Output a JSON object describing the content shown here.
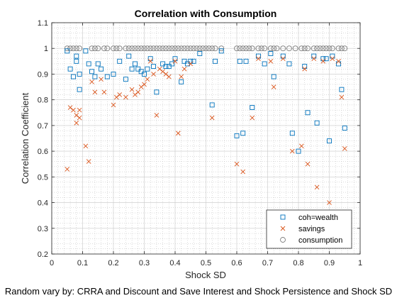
{
  "chart_data": {
    "type": "scatter",
    "title": "Correlation with Consumption",
    "xlabel": "Shock SD",
    "ylabel": "Correlation Coefficient",
    "caption": "Random vary by: CRRA and Discount and Save Interest and Shock Persistence and Shock SD",
    "xlim": [
      0,
      1
    ],
    "ylim": [
      0.2,
      1.1
    ],
    "xticks": [
      "0",
      "0.1",
      "0.2",
      "0.3",
      "0.4",
      "0.5",
      "0.6",
      "0.7",
      "0.8",
      "0.9",
      "1"
    ],
    "yticks": [
      "0.2",
      "0.3",
      "0.4",
      "0.5",
      "0.6",
      "0.7",
      "0.8",
      "0.9",
      "1",
      "1.1"
    ],
    "grid": "minor-dotted",
    "legend_position": "bottom-right",
    "series": [
      {
        "name": "coh=wealth",
        "marker": "square",
        "color": "#0072BD",
        "points": [
          [
            0.05,
            0.99
          ],
          [
            0.06,
            0.92
          ],
          [
            0.07,
            0.89
          ],
          [
            0.08,
            0.97
          ],
          [
            0.08,
            0.95
          ],
          [
            0.09,
            0.84
          ],
          [
            0.09,
            0.9
          ],
          [
            0.11,
            0.99
          ],
          [
            0.12,
            0.94
          ],
          [
            0.13,
            0.91
          ],
          [
            0.14,
            0.89
          ],
          [
            0.15,
            0.94
          ],
          [
            0.16,
            0.92
          ],
          [
            0.18,
            0.89
          ],
          [
            0.2,
            0.9
          ],
          [
            0.22,
            0.95
          ],
          [
            0.24,
            0.88
          ],
          [
            0.25,
            0.97
          ],
          [
            0.26,
            0.92
          ],
          [
            0.27,
            0.94
          ],
          [
            0.28,
            0.92
          ],
          [
            0.29,
            0.91
          ],
          [
            0.3,
            0.9
          ],
          [
            0.31,
            0.92
          ],
          [
            0.32,
            0.96
          ],
          [
            0.33,
            0.93
          ],
          [
            0.34,
            0.83
          ],
          [
            0.36,
            0.94
          ],
          [
            0.37,
            0.93
          ],
          [
            0.38,
            0.93
          ],
          [
            0.39,
            0.94
          ],
          [
            0.4,
            0.96
          ],
          [
            0.42,
            0.87
          ],
          [
            0.43,
            0.95
          ],
          [
            0.44,
            0.94
          ],
          [
            0.45,
            0.95
          ],
          [
            0.46,
            0.95
          ],
          [
            0.48,
            0.98
          ],
          [
            0.52,
            0.78
          ],
          [
            0.53,
            0.95
          ],
          [
            0.55,
            0.99
          ],
          [
            0.6,
            0.66
          ],
          [
            0.61,
            0.95
          ],
          [
            0.62,
            0.67
          ],
          [
            0.63,
            0.95
          ],
          [
            0.65,
            0.77
          ],
          [
            0.67,
            0.97
          ],
          [
            0.69,
            0.94
          ],
          [
            0.71,
            0.98
          ],
          [
            0.72,
            0.89
          ],
          [
            0.75,
            0.97
          ],
          [
            0.77,
            0.94
          ],
          [
            0.78,
            0.67
          ],
          [
            0.8,
            0.6
          ],
          [
            0.82,
            0.93
          ],
          [
            0.83,
            0.75
          ],
          [
            0.85,
            0.97
          ],
          [
            0.86,
            0.71
          ],
          [
            0.88,
            0.96
          ],
          [
            0.89,
            0.96
          ],
          [
            0.9,
            0.64
          ],
          [
            0.91,
            0.97
          ],
          [
            0.93,
            0.94
          ],
          [
            0.94,
            0.84
          ],
          [
            0.95,
            0.69
          ]
        ]
      },
      {
        "name": "savings",
        "marker": "x",
        "color": "#D95319",
        "points": [
          [
            0.05,
            0.53
          ],
          [
            0.06,
            0.77
          ],
          [
            0.07,
            0.76
          ],
          [
            0.08,
            0.74
          ],
          [
            0.08,
            0.71
          ],
          [
            0.09,
            0.73
          ],
          [
            0.09,
            0.76
          ],
          [
            0.11,
            0.62
          ],
          [
            0.12,
            0.56
          ],
          [
            0.13,
            0.87
          ],
          [
            0.14,
            0.83
          ],
          [
            0.16,
            0.88
          ],
          [
            0.17,
            0.83
          ],
          [
            0.2,
            0.78
          ],
          [
            0.21,
            0.81
          ],
          [
            0.22,
            0.82
          ],
          [
            0.24,
            0.81
          ],
          [
            0.26,
            0.84
          ],
          [
            0.27,
            0.82
          ],
          [
            0.28,
            0.83
          ],
          [
            0.29,
            0.85
          ],
          [
            0.3,
            0.86
          ],
          [
            0.31,
            0.88
          ],
          [
            0.32,
            0.95
          ],
          [
            0.33,
            0.9
          ],
          [
            0.34,
            0.74
          ],
          [
            0.35,
            0.92
          ],
          [
            0.36,
            0.91
          ],
          [
            0.37,
            0.9
          ],
          [
            0.38,
            0.89
          ],
          [
            0.4,
            0.95
          ],
          [
            0.41,
            0.67
          ],
          [
            0.42,
            0.89
          ],
          [
            0.43,
            0.92
          ],
          [
            0.45,
            0.94
          ],
          [
            0.52,
            0.73
          ],
          [
            0.6,
            0.55
          ],
          [
            0.62,
            0.52
          ],
          [
            0.65,
            0.73
          ],
          [
            0.67,
            0.96
          ],
          [
            0.71,
            0.95
          ],
          [
            0.72,
            0.85
          ],
          [
            0.75,
            0.96
          ],
          [
            0.78,
            0.6
          ],
          [
            0.81,
            0.62
          ],
          [
            0.82,
            0.92
          ],
          [
            0.83,
            0.55
          ],
          [
            0.85,
            0.96
          ],
          [
            0.86,
            0.46
          ],
          [
            0.88,
            0.95
          ],
          [
            0.9,
            0.4
          ],
          [
            0.91,
            0.96
          ],
          [
            0.93,
            0.95
          ],
          [
            0.94,
            0.81
          ],
          [
            0.95,
            0.61
          ]
        ]
      },
      {
        "name": "consumption",
        "marker": "circle",
        "color": "#7F7F7F",
        "points": [
          [
            0.05,
            1
          ],
          [
            0.06,
            1
          ],
          [
            0.07,
            1
          ],
          [
            0.08,
            1
          ],
          [
            0.09,
            1
          ],
          [
            0.13,
            1
          ],
          [
            0.14,
            1
          ],
          [
            0.15,
            1
          ],
          [
            0.17,
            1
          ],
          [
            0.18,
            1
          ],
          [
            0.2,
            1
          ],
          [
            0.21,
            1
          ],
          [
            0.22,
            1
          ],
          [
            0.24,
            1
          ],
          [
            0.25,
            1
          ],
          [
            0.26,
            1
          ],
          [
            0.27,
            1
          ],
          [
            0.28,
            1
          ],
          [
            0.29,
            1
          ],
          [
            0.3,
            1
          ],
          [
            0.31,
            1
          ],
          [
            0.32,
            1
          ],
          [
            0.33,
            1
          ],
          [
            0.34,
            1
          ],
          [
            0.35,
            1
          ],
          [
            0.36,
            1
          ],
          [
            0.37,
            1
          ],
          [
            0.38,
            1
          ],
          [
            0.39,
            1
          ],
          [
            0.4,
            1
          ],
          [
            0.41,
            1
          ],
          [
            0.42,
            1
          ],
          [
            0.43,
            1
          ],
          [
            0.44,
            1
          ],
          [
            0.45,
            1
          ],
          [
            0.46,
            1
          ],
          [
            0.47,
            1
          ],
          [
            0.48,
            1
          ],
          [
            0.49,
            1
          ],
          [
            0.5,
            1
          ],
          [
            0.51,
            1
          ],
          [
            0.52,
            1
          ],
          [
            0.53,
            1
          ],
          [
            0.55,
            1
          ],
          [
            0.6,
            1
          ],
          [
            0.61,
            1
          ],
          [
            0.62,
            1
          ],
          [
            0.63,
            1
          ],
          [
            0.64,
            1
          ],
          [
            0.65,
            1
          ],
          [
            0.67,
            1
          ],
          [
            0.68,
            1
          ],
          [
            0.69,
            1
          ],
          [
            0.71,
            1
          ],
          [
            0.72,
            1
          ],
          [
            0.73,
            1
          ],
          [
            0.75,
            1
          ],
          [
            0.77,
            1
          ],
          [
            0.79,
            1
          ],
          [
            0.81,
            1
          ],
          [
            0.82,
            1
          ],
          [
            0.83,
            1
          ],
          [
            0.85,
            1
          ],
          [
            0.86,
            1
          ],
          [
            0.87,
            1
          ],
          [
            0.88,
            1
          ],
          [
            0.89,
            1
          ],
          [
            0.9,
            1
          ],
          [
            0.91,
            1
          ],
          [
            0.93,
            1
          ],
          [
            0.94,
            1
          ],
          [
            0.95,
            1
          ]
        ]
      }
    ]
  }
}
